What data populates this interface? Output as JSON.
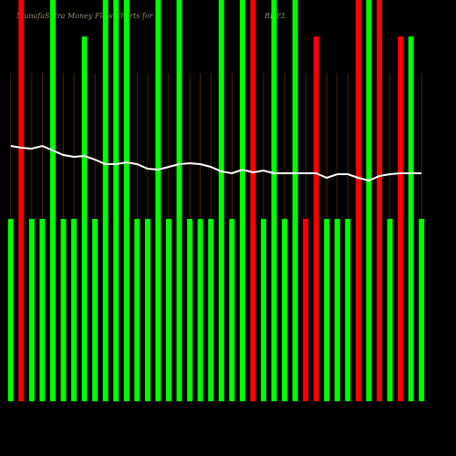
{
  "chart_data": {
    "type": "bar",
    "title": "MunafaSutra  Money Flow  Charts for",
    "subtitle": "BHEL",
    "categories": [
      null,
      null,
      null,
      null,
      null,
      null,
      null,
      null,
      null,
      null,
      null,
      null,
      null,
      null,
      null,
      null,
      null,
      null,
      null,
      null,
      null,
      null,
      null,
      null,
      null,
      null,
      null,
      null,
      null,
      null,
      null,
      null,
      null,
      null,
      null,
      null,
      null,
      null,
      null,
      null
    ],
    "ylim": [
      0,
      2.2
    ],
    "y2lim": [
      0,
      440
    ],
    "series": [
      {
        "colors": [
          "#00ff00",
          "#ff0000",
          "#00ff00",
          "#00ff00",
          "#00ff00",
          "#00ff00",
          "#00ff00",
          "#00ff00",
          "#00ff00",
          "#00ff00",
          "#00ff00",
          "#00ff00",
          "#00ff00",
          "#00ff00",
          "#00ff00",
          "#00ff00",
          "#00ff00",
          "#00ff00",
          "#00ff00",
          "#00ff00",
          "#00ff00",
          "#00ff00",
          "#00ff00",
          "#ff0000",
          "#00ff00",
          "#00ff00",
          "#00ff00",
          "#00ff00",
          "#ff0000",
          "#ff0000",
          "#00ff00",
          "#00ff00",
          "#00ff00",
          "#ff0000",
          "#00ff00",
          "#ff0000",
          "#00ff00",
          "#ff0000",
          "#00ff00",
          "#00ff00"
        ],
        "values": [
          1,
          2.2,
          1,
          1,
          2.2,
          1,
          1,
          2,
          1,
          2.2,
          2.2,
          2.2,
          1,
          1,
          2.2,
          1,
          2.2,
          1,
          1,
          1,
          2.2,
          1,
          2.2,
          2.2,
          1,
          2.2,
          1,
          2.2,
          1,
          2,
          1,
          1,
          1,
          2.2,
          2.2,
          2.2,
          1,
          2,
          2,
          1
        ]
      },
      {
        "color": "#ffffff",
        "axis": "y2",
        "values": [
          280,
          278,
          277,
          280,
          275,
          270,
          268,
          269,
          265,
          260,
          260,
          262,
          260,
          255,
          254,
          257,
          260,
          261,
          260,
          257,
          252,
          250,
          254,
          251,
          253,
          250,
          250,
          250,
          250,
          250,
          245,
          249,
          249,
          245,
          242,
          247,
          249,
          250,
          250,
          250
        ]
      }
    ]
  }
}
